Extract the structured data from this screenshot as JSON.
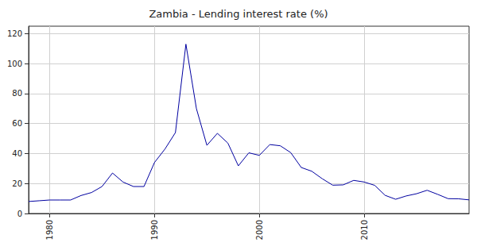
{
  "chart_data": {
    "type": "line",
    "title": "Zambia - Lending interest rate (%)",
    "x": [
      1978,
      1979,
      1980,
      1981,
      1982,
      1983,
      1984,
      1985,
      1986,
      1987,
      1988,
      1989,
      1990,
      1991,
      1992,
      1993,
      1994,
      1995,
      1996,
      1997,
      1998,
      1999,
      2000,
      2001,
      2002,
      2003,
      2004,
      2005,
      2006,
      2007,
      2008,
      2009,
      2010,
      2011,
      2012,
      2013,
      2014,
      2015,
      2016,
      2017,
      2018,
      2019,
      2020
    ],
    "values": [
      8,
      8.5,
      9,
      9,
      9,
      12,
      14,
      18,
      27,
      21,
      18,
      18,
      34,
      43,
      54,
      113,
      70,
      45.5,
      53.5,
      47,
      31.8,
      40.5,
      38.8,
      46,
      45.2,
      40.6,
      30.7,
      28.2,
      23.2,
      18.9,
      19.1,
      22.1,
      21,
      18.8,
      12.1,
      9.5,
      11.7,
      13.2,
      15.5,
      12.8,
      9.9,
      9.8,
      9.1
    ],
    "color": "#0000a0",
    "xlim": [
      1978,
      2020
    ],
    "xticks": [
      1980,
      1990,
      2000,
      2010
    ],
    "ylim": [
      0,
      125
    ],
    "yticks": [
      0,
      20,
      40,
      60,
      80,
      100,
      120
    ],
    "grid": true
  }
}
